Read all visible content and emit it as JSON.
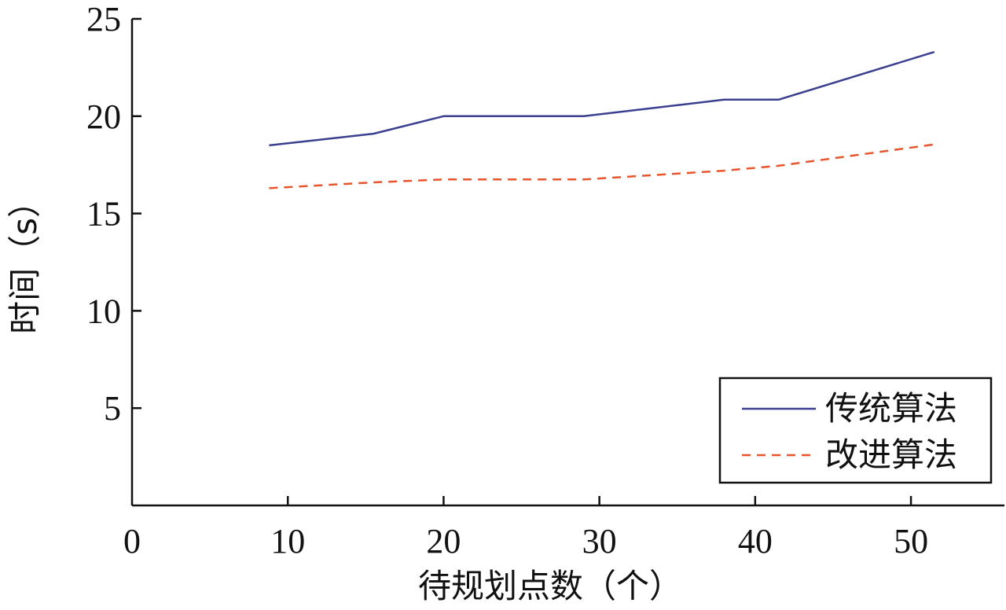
{
  "chart_data": {
    "type": "line",
    "title": "",
    "xlabel": "待规划点数（个）",
    "ylabel": "时间（s）",
    "xlim": [
      0,
      56
    ],
    "ylim": [
      0,
      25
    ],
    "xticks": [
      0,
      10,
      20,
      30,
      40,
      50
    ],
    "yticks": [
      5,
      10,
      15,
      20,
      25
    ],
    "x_tick_labels": [
      "0",
      "10",
      "20",
      "30",
      "40",
      "50"
    ],
    "y_tick_labels": [
      "5",
      "10",
      "15",
      "20",
      "25"
    ],
    "grid": false,
    "legend_position": "bottom-right",
    "series": [
      {
        "name": "传统算法",
        "style": "solid",
        "color": "#3a3f8f",
        "x": [
          8.8,
          15.5,
          20,
          29,
          38,
          41.5,
          51.5
        ],
        "y": [
          18.5,
          19.1,
          20.0,
          20.0,
          20.85,
          20.85,
          23.3
        ]
      },
      {
        "name": "改进算法",
        "style": "dashed",
        "color": "#e8552c",
        "x": [
          8.8,
          15.5,
          20,
          29,
          38,
          41.5,
          51.5
        ],
        "y": [
          16.3,
          16.6,
          16.75,
          16.75,
          17.2,
          17.45,
          18.55
        ]
      }
    ]
  }
}
